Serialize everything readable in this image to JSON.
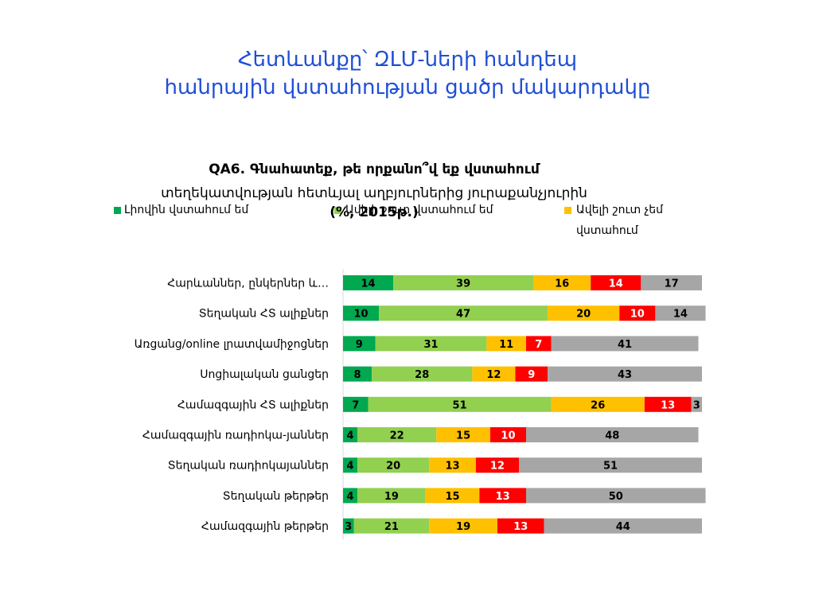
{
  "slide": {
    "title_line1": "Հետևանքը՝ ԶԼՄ-ների հանդեպ",
    "title_line2": "հանրային վստահության ցածր մակարդակը"
  },
  "chart_data": {
    "type": "bar",
    "orientation": "horizontal",
    "stacked": true,
    "title_line1": "QA6. Գնահատեք, թե որքանո՞վ եք  վստահում",
    "title_line2": "տեղեկատվության հետևյալ աղբյուրներից յուրաքանչյուրին",
    "title_line3": "(%, 2015թ.)",
    "legend_position": "top",
    "legend": [
      "Լիովին վստահում եմ",
      "Ավելի շուտ վստահում եմ",
      "Ավելի շուտ չեմ վստահում"
    ],
    "categories": [
      "Հարևաններ, ընկերներ և…",
      "Տեղական ՀՏ ալիքներ",
      "Առցանց/online լրատվամիջոցներ",
      "Սոցիալական ցանցեր",
      "Համազգային ՀՏ ալիքներ",
      "Համազգային ռադիոկա-յաններ",
      "Տեղական ռադիոկայաններ",
      "Տեղական թերթեր",
      "Համազգային  թերթեր"
    ],
    "series": [
      {
        "name": "Լիովին վստահում եմ",
        "color": "#00a850",
        "values": [
          14,
          10,
          9,
          8,
          7,
          4,
          4,
          4,
          3
        ]
      },
      {
        "name": "Ավելի շուտ վստահում եմ",
        "color": "#92d050",
        "values": [
          39,
          47,
          31,
          28,
          51,
          22,
          20,
          19,
          21
        ]
      },
      {
        "name": "Ավելի շուտ չեմ վստահում",
        "color": "#ffc000",
        "values": [
          16,
          20,
          11,
          12,
          26,
          15,
          13,
          15,
          19
        ]
      },
      {
        "color": "#ff0000",
        "values": [
          14,
          10,
          7,
          9,
          13,
          10,
          12,
          13,
          13
        ]
      },
      {
        "color": "#a6a6a6",
        "values": [
          17,
          14,
          41,
          43,
          3,
          48,
          51,
          50,
          44
        ]
      }
    ],
    "label_colors": [
      "#000000",
      "#000000",
      "#000000",
      "#ffffff",
      "#000000"
    ],
    "xlim": [
      0,
      100
    ],
    "grid": false
  }
}
